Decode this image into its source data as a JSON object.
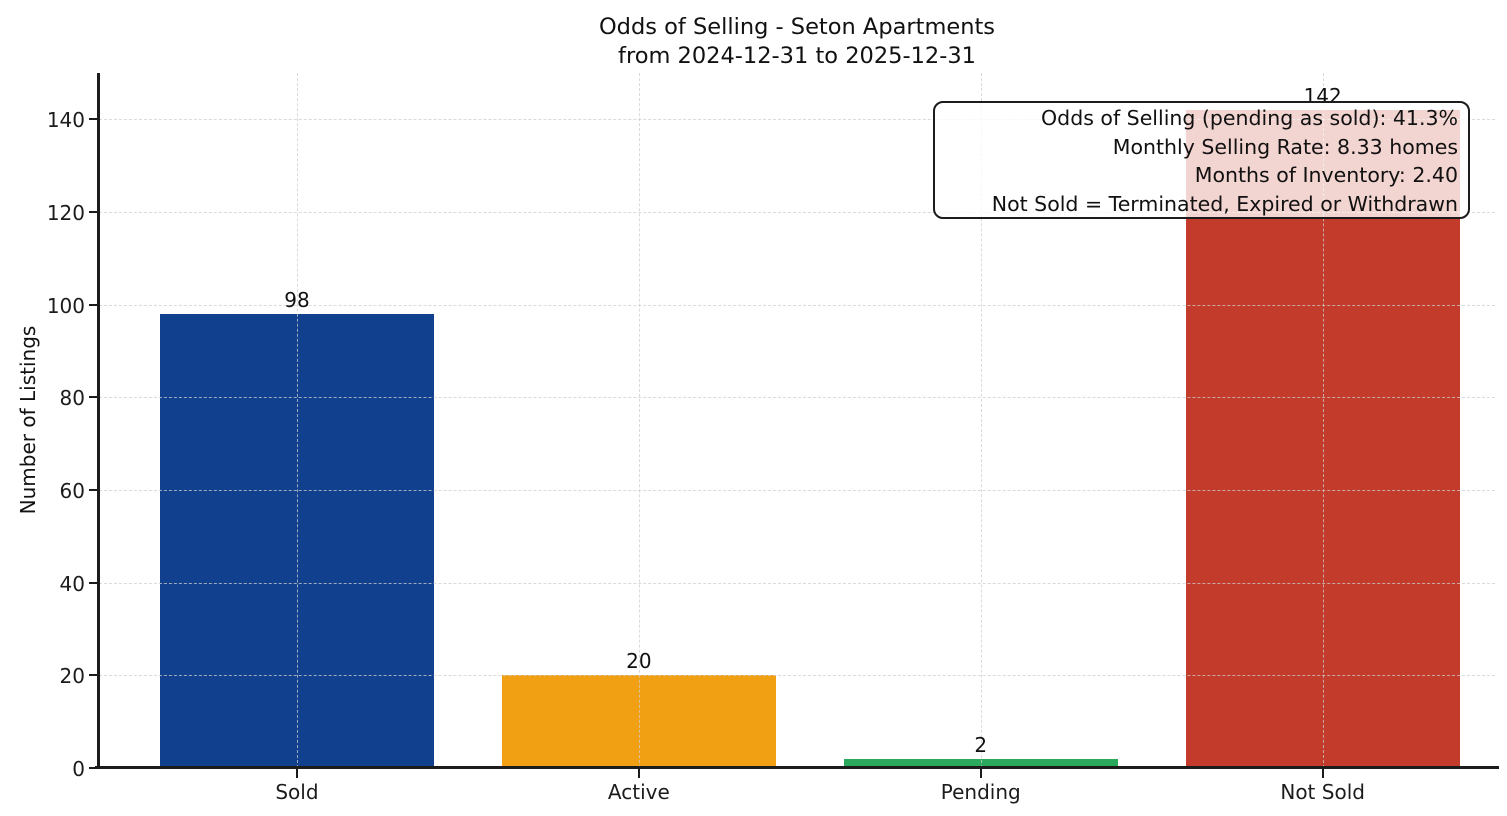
{
  "chart_data": {
    "type": "bar",
    "title": "Odds of Selling - Seton Apartments",
    "subtitle": "from 2024-12-31 to 2025-12-31",
    "categories": [
      "Sold",
      "Active",
      "Pending",
      "Not Sold"
    ],
    "values": [
      98,
      20,
      2,
      142
    ],
    "bar_colors": [
      "#11418E",
      "#F2A013",
      "#2BAA5E",
      "#C23B2B"
    ],
    "value_labels": [
      "98",
      "20",
      "2",
      "142"
    ],
    "xlabel": "",
    "ylabel": "Number of Listings",
    "yticks": [
      0,
      20,
      40,
      60,
      80,
      100,
      120,
      140
    ],
    "ylim": [
      0,
      150
    ],
    "grid": "dashed light-gray, horizontal at y-ticks and vertical at category centers, drawn over bars",
    "legend": "none",
    "annotation": {
      "position": "top-right",
      "align": "right",
      "lines": [
        "Odds of Selling (pending as sold): 41.3%",
        "Monthly Selling Rate: 8.33 homes",
        "Months of Inventory: 2.40",
        "Not Sold = Terminated, Expired or Withdrawn"
      ]
    }
  },
  "colors": {
    "background": "#ffffff",
    "spine": "#1c1c1c",
    "grid": "#cdcdcd",
    "text": "#111111",
    "annotation_bg": "rgba(255,255,255,0.78)"
  }
}
